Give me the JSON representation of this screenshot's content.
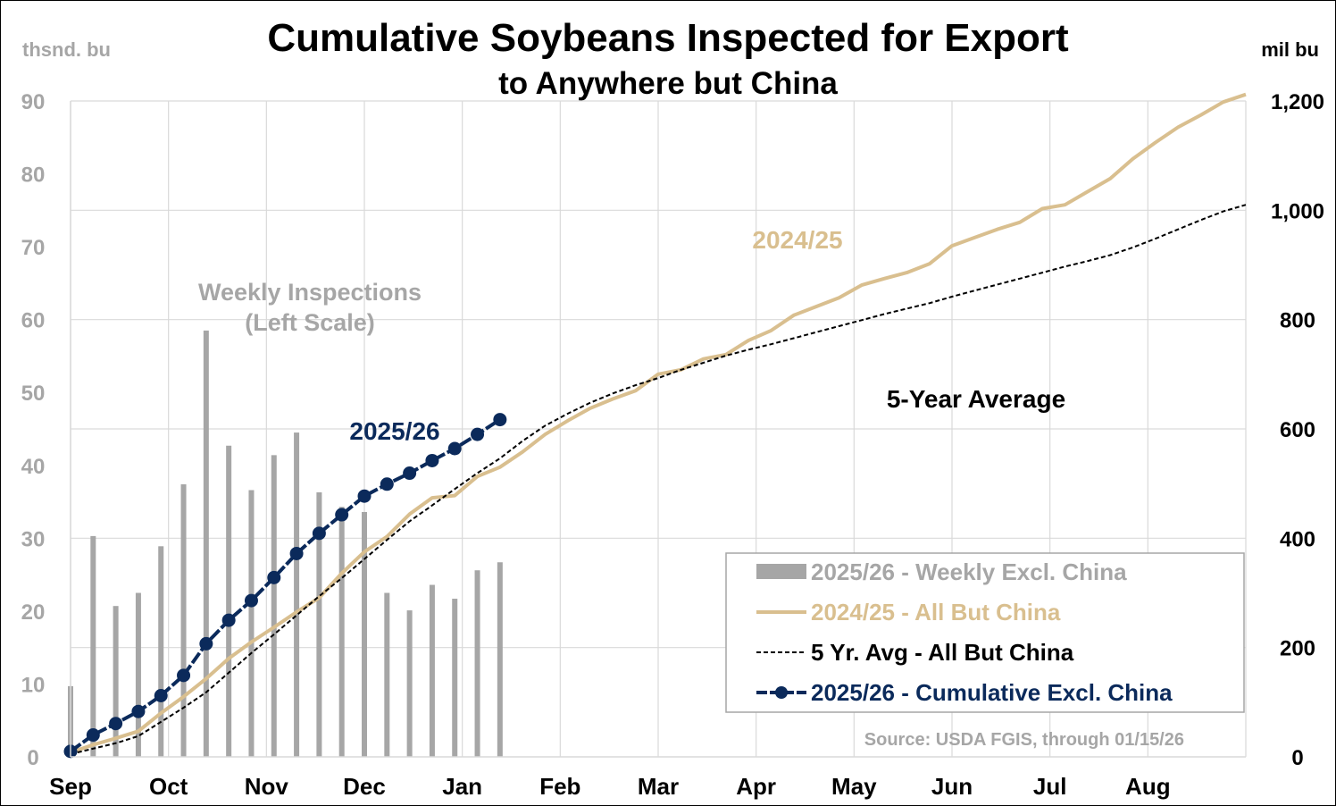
{
  "chart_data": {
    "type": "bar+line",
    "title": "Cumulative Soybeans Inspected for Export",
    "subtitle": "to Anywhere but China",
    "y_left_unit": "thsnd. bu",
    "y_right_unit": "mil bu",
    "y_left_range": [
      0,
      90
    ],
    "y_left_ticks": [
      "0",
      "10",
      "20",
      "30",
      "40",
      "50",
      "60",
      "70",
      "80",
      "90"
    ],
    "y_right_range": [
      0,
      1200
    ],
    "y_right_ticks": [
      "0",
      "200",
      "400",
      "600",
      "800",
      "1,000",
      "1,200"
    ],
    "x_labels": [
      "Sep",
      "Oct",
      "Nov",
      "Dec",
      "Jan",
      "Feb",
      "Mar",
      "Apr",
      "May",
      "Jun",
      "Jul",
      "Aug"
    ],
    "x_range_weeks": [
      0,
      52
    ],
    "series": [
      {
        "name": "2025/26 - Weekly Excl. China",
        "kind": "bar",
        "axis": "left",
        "color": "#a6a6a6",
        "x": [
          0,
          1,
          2,
          3,
          4,
          5,
          6,
          7,
          8,
          9,
          10,
          11,
          12,
          13,
          14,
          15,
          16,
          17,
          18,
          19
        ],
        "values": [
          9.7,
          30.3,
          20.7,
          22.5,
          28.9,
          37.4,
          58.5,
          42.7,
          36.6,
          41.4,
          44.5,
          36.3,
          34.3,
          33.6,
          22.5,
          20.1,
          23.6,
          21.7,
          25.6,
          26.7
        ]
      },
      {
        "name": "2024/25 - All But China",
        "kind": "line",
        "axis": "right",
        "color": "#d9bf8f",
        "x": [
          0,
          1,
          2,
          3,
          4,
          5,
          6,
          7,
          8,
          9,
          10,
          11,
          12,
          13,
          14,
          15,
          16,
          17,
          18,
          19,
          20,
          21,
          22,
          23,
          24,
          25,
          26,
          27,
          28,
          29,
          30,
          31,
          32,
          33,
          34,
          35,
          36,
          37,
          38,
          39,
          40,
          41,
          42,
          43,
          44,
          45,
          46,
          47,
          48,
          49,
          50,
          51,
          52
        ],
        "values": [
          8,
          22,
          34,
          47,
          80,
          110,
          143,
          180,
          210,
          237,
          265,
          291,
          336,
          375,
          403,
          444,
          474,
          478,
          513,
          530,
          558,
          590,
          615,
          638,
          655,
          670,
          700,
          708,
          728,
          736,
          762,
          780,
          808,
          824,
          840,
          863,
          875,
          886,
          902,
          935,
          950,
          965,
          978,
          1003,
          1010,
          1034,
          1058,
          1094,
          1124,
          1152,
          1174,
          1198,
          1212
        ]
      },
      {
        "name": "5 Yr. Avg - All But China",
        "kind": "line",
        "axis": "right",
        "color": "#000000",
        "x": [
          0,
          1,
          2,
          3,
          4,
          5,
          6,
          7,
          8,
          9,
          10,
          11,
          12,
          13,
          14,
          15,
          16,
          17,
          18,
          19,
          20,
          21,
          22,
          23,
          24,
          25,
          26,
          27,
          28,
          29,
          30,
          31,
          32,
          33,
          34,
          35,
          36,
          37,
          38,
          39,
          40,
          41,
          42,
          43,
          44,
          45,
          46,
          47,
          48,
          49,
          50,
          51,
          52
        ],
        "values": [
          5,
          15,
          25,
          38,
          64,
          90,
          118,
          154,
          190,
          224,
          259,
          294,
          327,
          362,
          397,
          431,
          460,
          490,
          519,
          546,
          578,
          606,
          628,
          648,
          665,
          680,
          693,
          708,
          721,
          734,
          745,
          755,
          766,
          777,
          788,
          799,
          810,
          820,
          830,
          842,
          853,
          864,
          875,
          886,
          897,
          907,
          918,
          932,
          948,
          965,
          982,
          998,
          1010
        ]
      },
      {
        "name": "2025/26 - Cumulative Excl. China",
        "kind": "line+marker",
        "axis": "right",
        "color": "#0b2a5b",
        "x": [
          0,
          1,
          2,
          3,
          4,
          5,
          6,
          7,
          8,
          9,
          10,
          11,
          12,
          13,
          14,
          15,
          16,
          17,
          18,
          19
        ],
        "values": [
          10,
          40,
          61,
          83,
          112,
          149,
          207,
          250,
          286,
          328,
          372,
          409,
          443,
          477,
          499,
          519,
          542,
          564,
          590,
          617
        ]
      }
    ],
    "annotations": [
      {
        "text": "Weekly Inspections",
        "color": "#a6a6a6"
      },
      {
        "text": "(Left Scale)",
        "color": "#a6a6a6"
      },
      {
        "text": "2024/25",
        "color": "#d9bf8f"
      },
      {
        "text": "2025/26",
        "color": "#0b2a5b"
      },
      {
        "text": "5-Year Average",
        "color": "#000000"
      }
    ],
    "legend_position": "bottom-right",
    "gridlines": "vertical, horizontal",
    "source": "Source: USDA FGIS, through 01/15/26"
  }
}
